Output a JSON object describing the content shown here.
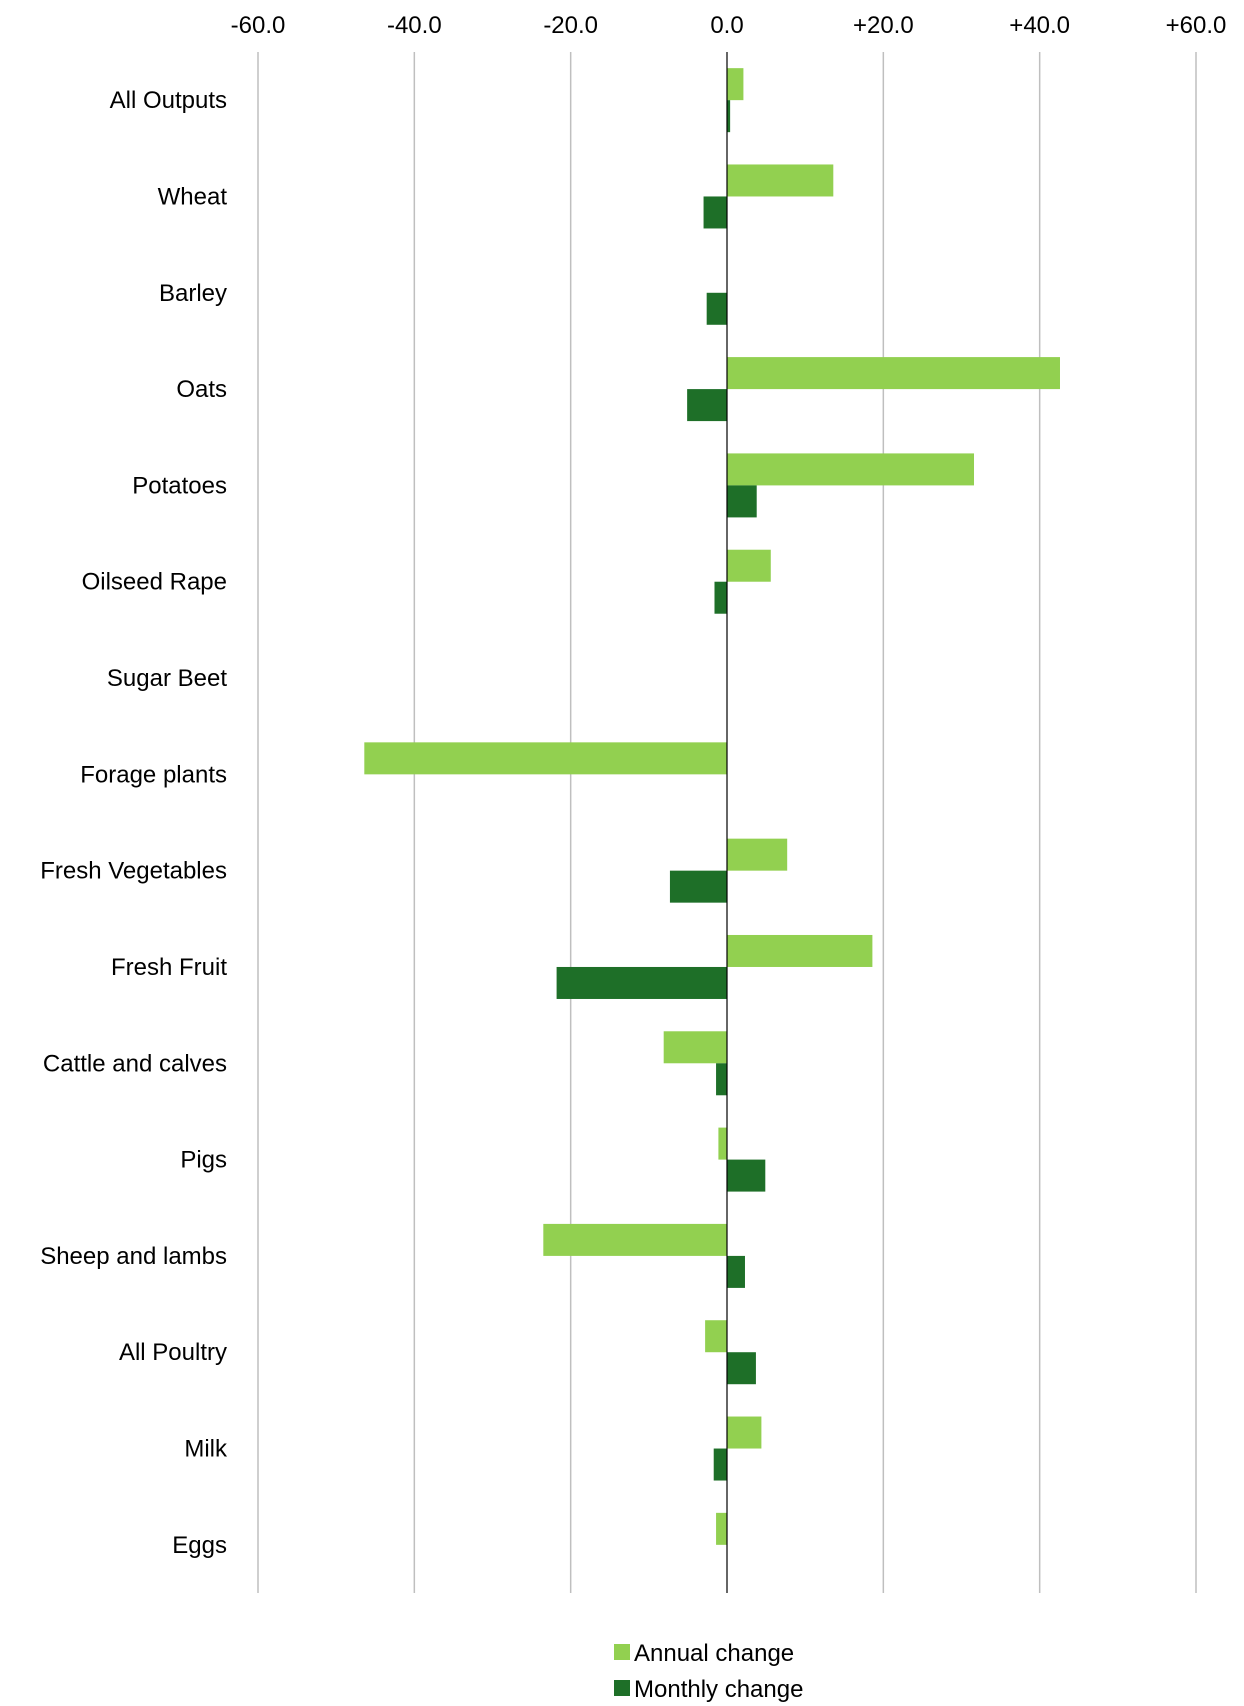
{
  "chart_data": {
    "type": "bar",
    "orientation": "horizontal",
    "title": "",
    "xlabel": "",
    "ylabel": "",
    "xlim": [
      -60,
      60
    ],
    "x_ticks": [
      -60,
      -40,
      -20,
      0,
      20,
      40,
      60
    ],
    "x_tick_labels": [
      "-60.0",
      "-40.0",
      "-20.0",
      "0.0",
      "+20.0",
      "+40.0",
      "+60.0"
    ],
    "x_axis_position": "top",
    "grid": true,
    "legend_position": "bottom",
    "categories": [
      "All Outputs",
      "Wheat",
      "Barley",
      "Oats",
      "Potatoes",
      "Oilseed Rape",
      "Sugar Beet",
      "Forage plants",
      "Fresh Vegetables",
      "Fresh Fruit",
      "Cattle and calves",
      "Pigs",
      "Sheep and lambs",
      "All Poultry",
      "Milk",
      "Eggs"
    ],
    "series": [
      {
        "name": "Annual change",
        "color": "#92d050",
        "values": [
          2.1,
          13.6,
          0,
          42.6,
          31.6,
          5.6,
          0,
          -46.4,
          7.7,
          18.6,
          -8.1,
          -1.1,
          -23.5,
          -2.8,
          4.4,
          -1.4
        ]
      },
      {
        "name": "Monthly change",
        "color": "#1e6f28",
        "values": [
          0.4,
          -3.0,
          -2.6,
          -5.1,
          3.8,
          -1.6,
          0,
          0,
          -7.3,
          -21.8,
          -1.4,
          4.9,
          2.3,
          3.7,
          -1.7,
          0
        ]
      }
    ]
  }
}
